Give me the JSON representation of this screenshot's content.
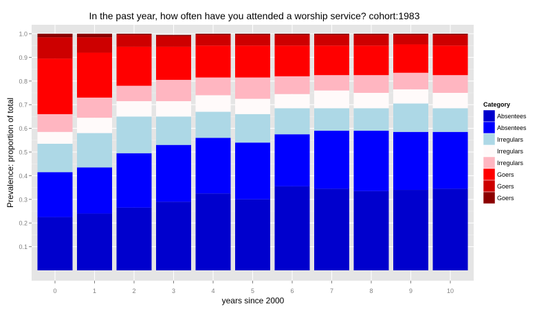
{
  "chart_data": {
    "type": "bar",
    "stacked": true,
    "title": "In the past year, how often have you attended a worship service?   cohort:1983",
    "xlabel": "years since 2000",
    "ylabel": "Prevalence: proportion of total",
    "x": [
      0,
      1,
      2,
      3,
      4,
      5,
      6,
      7,
      8,
      9,
      10
    ],
    "ylim": [
      0,
      1
    ],
    "yticks": [
      0.1,
      0.2,
      0.3,
      0.4,
      0.5,
      0.6,
      0.7,
      0.8,
      0.9,
      1.0
    ],
    "ytick_labels": [
      "0.1",
      "0.2",
      "0.3",
      "0.4",
      "0.5",
      "0.6",
      "0.7",
      "0.8",
      "0.9",
      "1.0"
    ],
    "grid": true,
    "legend_position": "right",
    "legend_title": "Category",
    "series": [
      {
        "name": "Absentees",
        "color": "#0000cd",
        "values": [
          0.225,
          0.24,
          0.265,
          0.29,
          0.325,
          0.3,
          0.355,
          0.345,
          0.335,
          0.34,
          0.345
        ]
      },
      {
        "name": "Absentees",
        "color": "#0000ff",
        "values": [
          0.19,
          0.195,
          0.23,
          0.24,
          0.235,
          0.24,
          0.22,
          0.245,
          0.255,
          0.245,
          0.24
        ]
      },
      {
        "name": "Irregulars",
        "color": "#add8e6",
        "values": [
          0.12,
          0.145,
          0.155,
          0.12,
          0.11,
          0.12,
          0.11,
          0.095,
          0.095,
          0.12,
          0.1
        ]
      },
      {
        "name": "Irregulars",
        "color": "#fffafa",
        "values": [
          0.05,
          0.065,
          0.065,
          0.065,
          0.07,
          0.065,
          0.06,
          0.075,
          0.065,
          0.06,
          0.065
        ]
      },
      {
        "name": "Irregulars",
        "color": "#ffb6c1",
        "values": [
          0.075,
          0.085,
          0.065,
          0.09,
          0.075,
          0.09,
          0.075,
          0.065,
          0.075,
          0.07,
          0.075
        ]
      },
      {
        "name": "Goers",
        "color": "#ff0000",
        "values": [
          0.235,
          0.19,
          0.165,
          0.14,
          0.135,
          0.135,
          0.13,
          0.125,
          0.125,
          0.12,
          0.125
        ]
      },
      {
        "name": "Goers",
        "color": "#cd0000",
        "values": [
          0.09,
          0.065,
          0.05,
          0.045,
          0.045,
          0.045,
          0.045,
          0.045,
          0.045,
          0.04,
          0.045
        ]
      },
      {
        "name": "Goers",
        "color": "#8b0000",
        "values": [
          0.015,
          0.015,
          0.005,
          0.005,
          0.005,
          0.005,
          0.005,
          0.005,
          0.005,
          0.005,
          0.005
        ]
      }
    ]
  }
}
